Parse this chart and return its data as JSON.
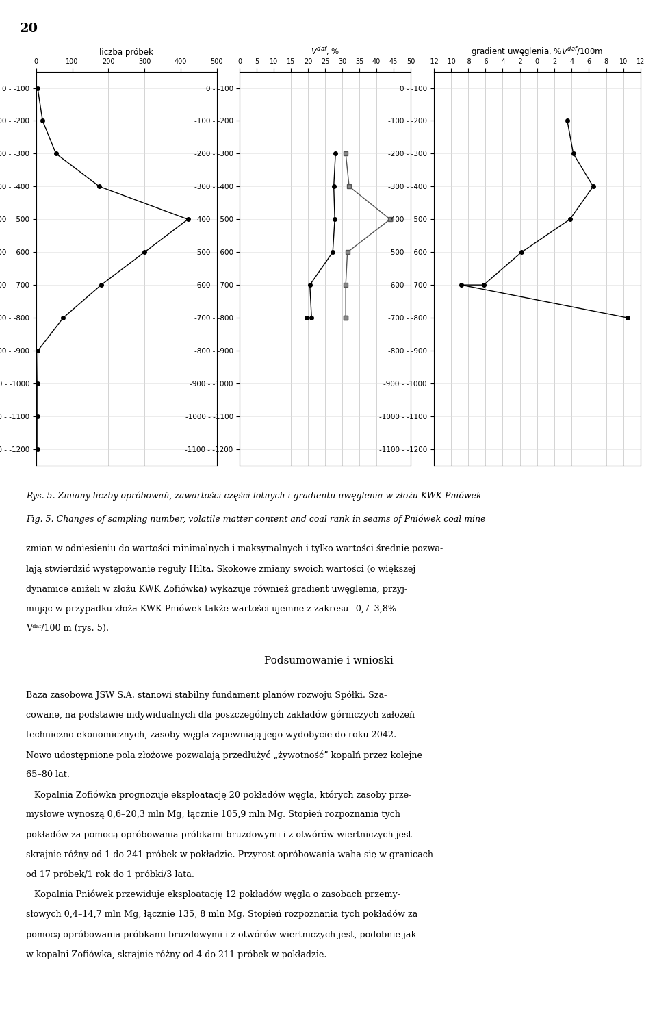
{
  "page_number": "20",
  "depth_labels": [
    "0 - -100",
    "-100 - -200",
    "-200 - -300",
    "-300 - -400",
    "-400 - -500",
    "-500 - -600",
    "-600 - -700",
    "-700 - -800",
    "-800 - -900",
    "-900 - -1000",
    "-1000 - -1100",
    "-1100 - -1200"
  ],
  "chart1_title": "liczba próbek",
  "chart1_xlabel_ticks": [
    0,
    100,
    200,
    300,
    400,
    500
  ],
  "chart1_xlim": [
    0,
    500
  ],
  "chart1_data_x": [
    4,
    18,
    55,
    175,
    420,
    300,
    180,
    75,
    5,
    4,
    4,
    4
  ],
  "chart1_data_y": [
    0,
    1,
    2,
    3,
    4,
    5,
    6,
    7,
    8,
    9,
    10,
    11
  ],
  "chart2_xlabel_ticks": [
    0,
    5,
    10,
    15,
    20,
    25,
    30,
    35,
    40,
    45,
    50
  ],
  "chart2_xlim": [
    0,
    50
  ],
  "chart2_series1_x": [
    28.0,
    27.5,
    27.8,
    27.2,
    20.5,
    21.0,
    19.5
  ],
  "chart2_series1_y": [
    2,
    3,
    4,
    5,
    6,
    7,
    7
  ],
  "chart2_series2_x": [
    31.0,
    32.0,
    44.0,
    31.5,
    31.0,
    31.0,
    31.0
  ],
  "chart2_series2_y": [
    2,
    3,
    4,
    5,
    6,
    7,
    7
  ],
  "chart3_xlabel_ticks": [
    -12,
    -10,
    -8,
    -6,
    -4,
    -2,
    0,
    2,
    4,
    6,
    8,
    10,
    12
  ],
  "chart3_xlim": [
    -12,
    12
  ],
  "chart3_data_x": [
    3.5,
    4.2,
    6.5,
    3.8,
    -1.8,
    -6.2,
    -8.8,
    10.5
  ],
  "chart3_data_y": [
    1,
    2,
    3,
    4,
    5,
    6,
    6,
    7
  ],
  "background_color": "#ffffff",
  "line_color": "#000000",
  "grid_color": "#cccccc",
  "label_fontsize": 7.5,
  "title_fontsize": 8.5,
  "tick_fontsize": 7.0
}
